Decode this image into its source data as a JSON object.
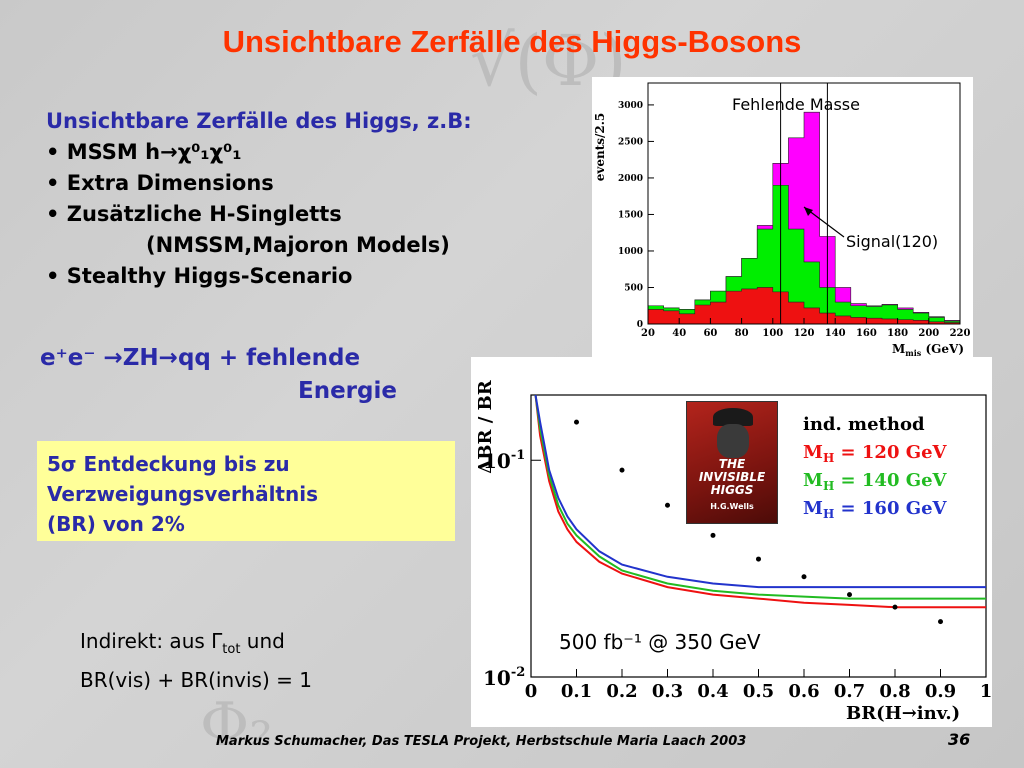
{
  "slide": {
    "title": "Unsichtbare Zerfälle des Higgs-Bosons",
    "intro_head": "Unsichtbare Zerfälle des Higgs, z.B:",
    "bullets": [
      "• MSSM h→χ⁰₁χ⁰₁",
      "• Extra Dimensions",
      "• Zusätzliche H-Singletts",
      "(NMSSM,Majoron Models)",
      "• Stealthy Higgs-Scenario"
    ],
    "process_line1": "e⁺e⁻ →ZH→qq + fehlende",
    "process_line2": "Energie",
    "box_text": [
      "5σ Entdeckung bis zu",
      "Verzweigungsverhältnis",
      "(BR) von 2%"
    ],
    "indirect_line1": "Indirekt: aus Γ",
    "indirect_sub": "tot",
    "indirect_line1_end": " und",
    "indirect_line2": "BR(vis) + BR(invis) = 1",
    "footer": "Markus Schumacher, Das TESLA Projekt, Herbstschule Maria Laach 2003",
    "page_number": "36",
    "book_title": "THE INVISIBLE HIGGS",
    "book_author": "H.G.Wells"
  },
  "chart_data": [
    {
      "type": "histogram",
      "ylabel": "events/2.5",
      "xlabel": "M_mis (GeV)",
      "xlim": [
        20,
        220
      ],
      "ylim": [
        0,
        3300
      ],
      "xticks": [
        20,
        40,
        60,
        80,
        100,
        120,
        140,
        160,
        180,
        200,
        220
      ],
      "yticks": [
        0,
        500,
        1000,
        1500,
        2000,
        2500,
        3000
      ],
      "annotations": [
        "Fehlende Masse",
        "Signal(120)"
      ],
      "mass_window": [
        105,
        135
      ],
      "colors": {
        "background_red": "#ee1111",
        "background_green": "#00ee00",
        "signal": "#ff00ff"
      },
      "x": [
        20,
        30,
        40,
        50,
        60,
        70,
        80,
        90,
        100,
        110,
        120,
        130,
        140,
        150,
        160,
        170,
        180,
        190,
        200,
        210,
        220
      ],
      "series": [
        {
          "name": "red",
          "values": [
            200,
            180,
            140,
            260,
            300,
            450,
            480,
            500,
            440,
            300,
            220,
            150,
            110,
            90,
            80,
            70,
            60,
            50,
            30,
            20,
            10
          ]
        },
        {
          "name": "green",
          "values": [
            250,
            220,
            200,
            330,
            450,
            650,
            900,
            1300,
            1900,
            1300,
            850,
            500,
            300,
            250,
            240,
            260,
            200,
            150,
            90,
            40,
            20
          ]
        },
        {
          "name": "magenta",
          "values": [
            250,
            220,
            200,
            330,
            450,
            650,
            900,
            1350,
            2200,
            2550,
            2900,
            1200,
            500,
            280,
            250,
            270,
            220,
            160,
            100,
            50,
            20
          ]
        }
      ]
    },
    {
      "type": "line",
      "ylabel": "ΔBR / BR",
      "xlabel": "BR(H→inv.)",
      "xlim": [
        0,
        1
      ],
      "ylim_log": [
        0.01,
        0.2
      ],
      "xticks": [
        "0",
        "0.1",
        "0.2",
        "0.3",
        "0.4",
        "0.5",
        "0.6",
        "0.7",
        "0.8",
        "0.9",
        "1"
      ],
      "ytick_labels": [
        "10",
        "10"
      ],
      "ytick_exponents": [
        "-1",
        "-2"
      ],
      "legend": [
        {
          "label": "ind. method",
          "color": "#000000"
        },
        {
          "label": "M",
          "sub": "H",
          "rest": " = 120 GeV",
          "color": "#ee1111"
        },
        {
          "label": "M",
          "sub": "H",
          "rest": " = 140 GeV",
          "color": "#22bb22"
        },
        {
          "label": "M",
          "sub": "H",
          "rest": " = 160 GeV",
          "color": "#2233cc"
        }
      ],
      "annotation": "500 fb⁻¹ @ 350 GeV",
      "x": [
        0.01,
        0.02,
        0.04,
        0.06,
        0.08,
        0.1,
        0.15,
        0.2,
        0.3,
        0.4,
        0.5,
        0.6,
        0.7,
        0.8,
        0.9,
        1.0
      ],
      "series": [
        {
          "name": "M_H = 120 GeV",
          "values": [
            0.2,
            0.13,
            0.08,
            0.058,
            0.048,
            0.042,
            0.034,
            0.03,
            0.026,
            0.024,
            0.023,
            0.022,
            0.0215,
            0.021,
            0.021,
            0.021
          ]
        },
        {
          "name": "M_H = 140 GeV",
          "values": [
            0.2,
            0.14,
            0.085,
            0.062,
            0.051,
            0.045,
            0.036,
            0.031,
            0.027,
            0.025,
            0.024,
            0.0235,
            0.023,
            0.023,
            0.023,
            0.023
          ]
        },
        {
          "name": "M_H = 160 GeV",
          "values": [
            0.2,
            0.15,
            0.09,
            0.067,
            0.055,
            0.048,
            0.038,
            0.033,
            0.029,
            0.027,
            0.026,
            0.026,
            0.026,
            0.026,
            0.026,
            0.026
          ]
        }
      ],
      "ind_method_points": {
        "x": [
          0.1,
          0.2,
          0.3,
          0.4,
          0.5,
          0.6,
          0.7,
          0.8,
          0.9
        ],
        "y": [
          0.15,
          0.09,
          0.062,
          0.045,
          0.035,
          0.029,
          0.024,
          0.021,
          0.018
        ]
      }
    }
  ]
}
